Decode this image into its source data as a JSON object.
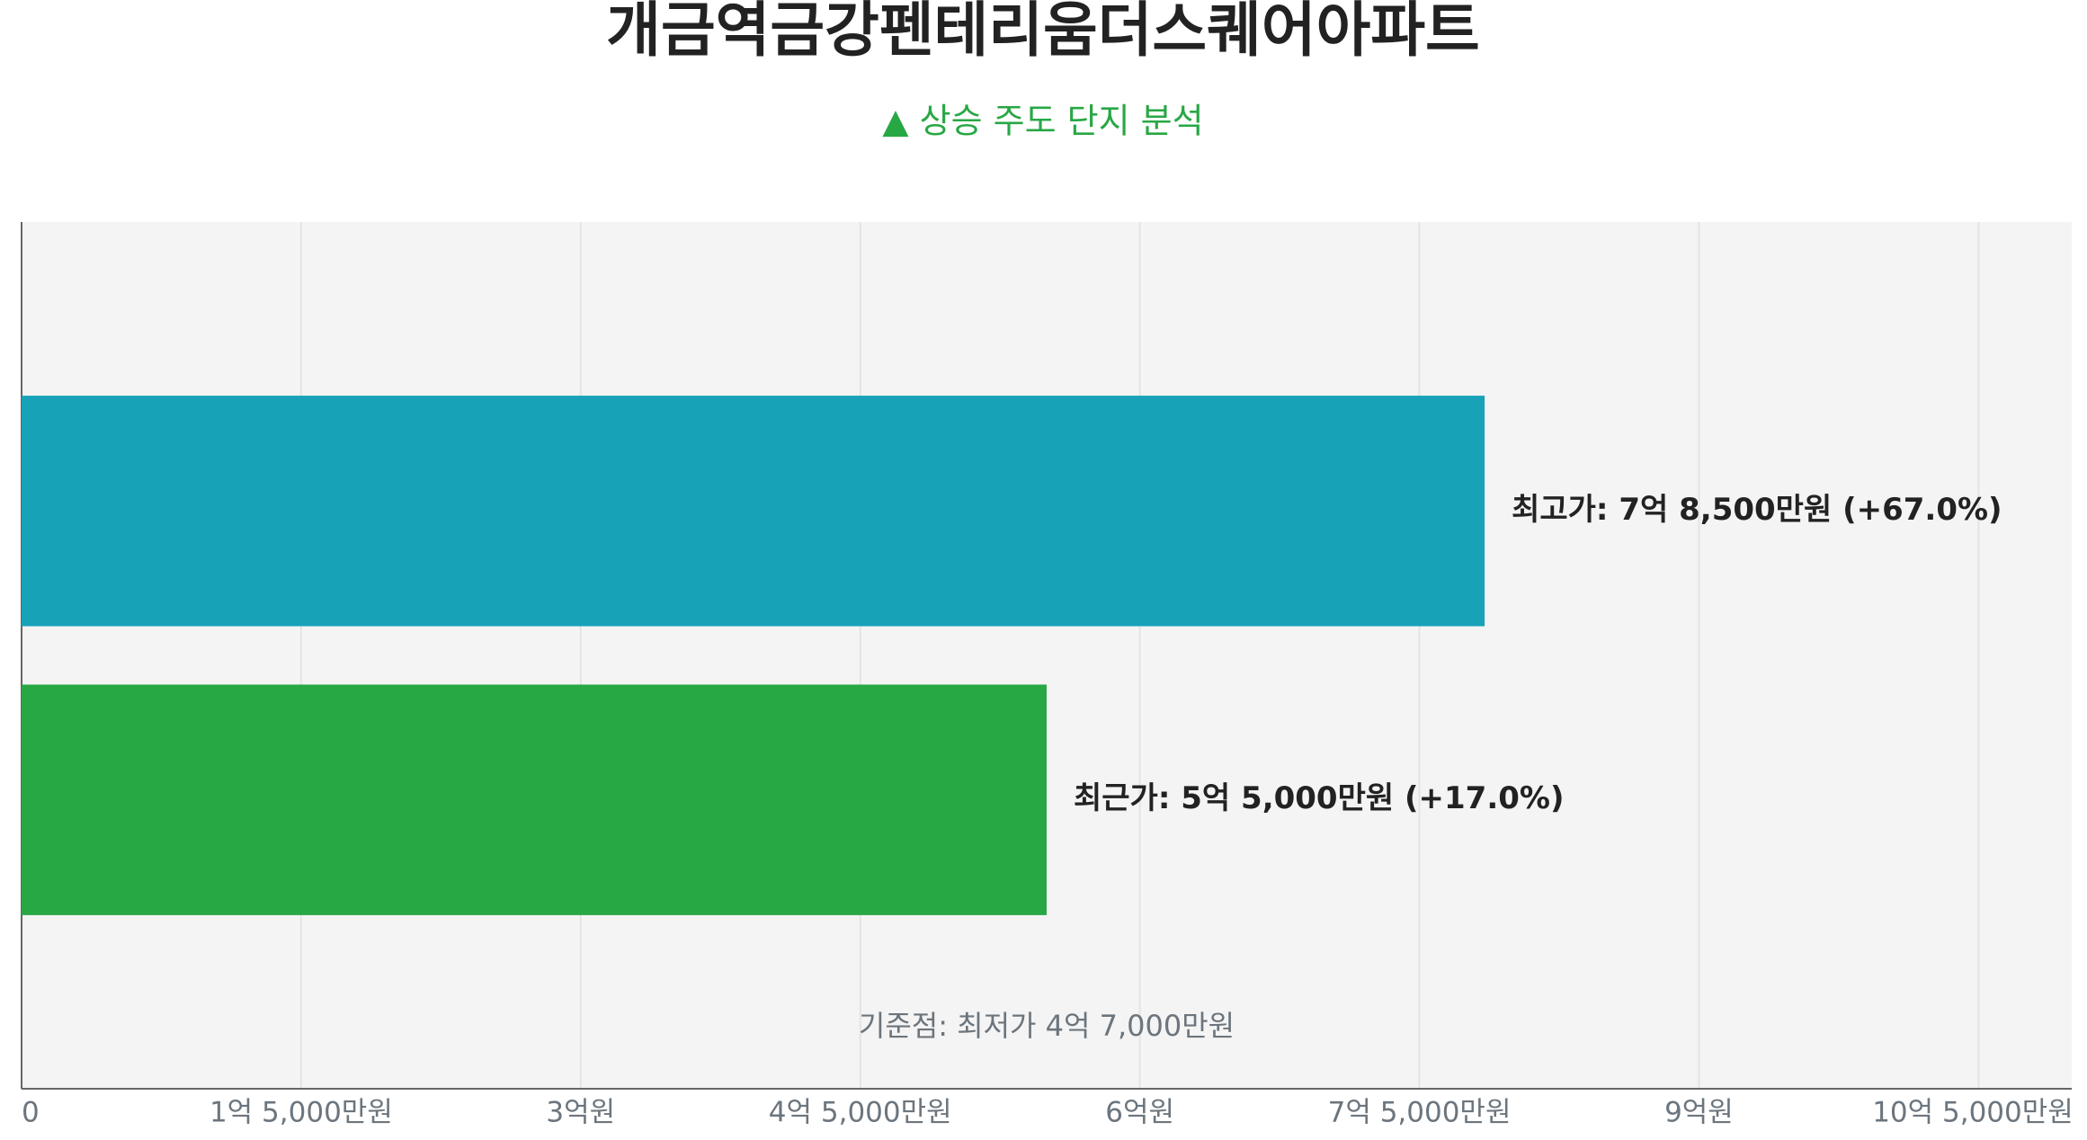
{
  "chart_data": {
    "type": "hbar",
    "title": "개금역금강펜테리움더스퀘어아파트",
    "subtitle": "▲ 상승 주도 단지 분석",
    "values": [
      785000000,
      550000000
    ],
    "value_labels": [
      "최고가: 7억 8,500만원 (+67.0%)",
      "최근가: 5억 5,000만원 (+17.0%)"
    ],
    "colors": [
      "#17a2b8",
      "#28a745"
    ],
    "xlim": [
      0,
      1100000000
    ],
    "xticks": [
      0,
      {
        "value": 150000000,
        "label": "1억 5,000만원"
      },
      {
        "value": 300000000,
        "label": "3억원"
      },
      {
        "value": 450000000,
        "label": "4억 5,000만원"
      },
      {
        "value": 600000000,
        "label": "6억원"
      },
      {
        "value": 750000000,
        "label": "7억 5,000만원"
      },
      {
        "value": 900000000,
        "label": "9억원"
      },
      {
        "value": 1050000000,
        "label": "10억 5,000만원"
      }
    ],
    "annotation": "기준점: 최저가 4억 7,000만원",
    "grid": true
  }
}
